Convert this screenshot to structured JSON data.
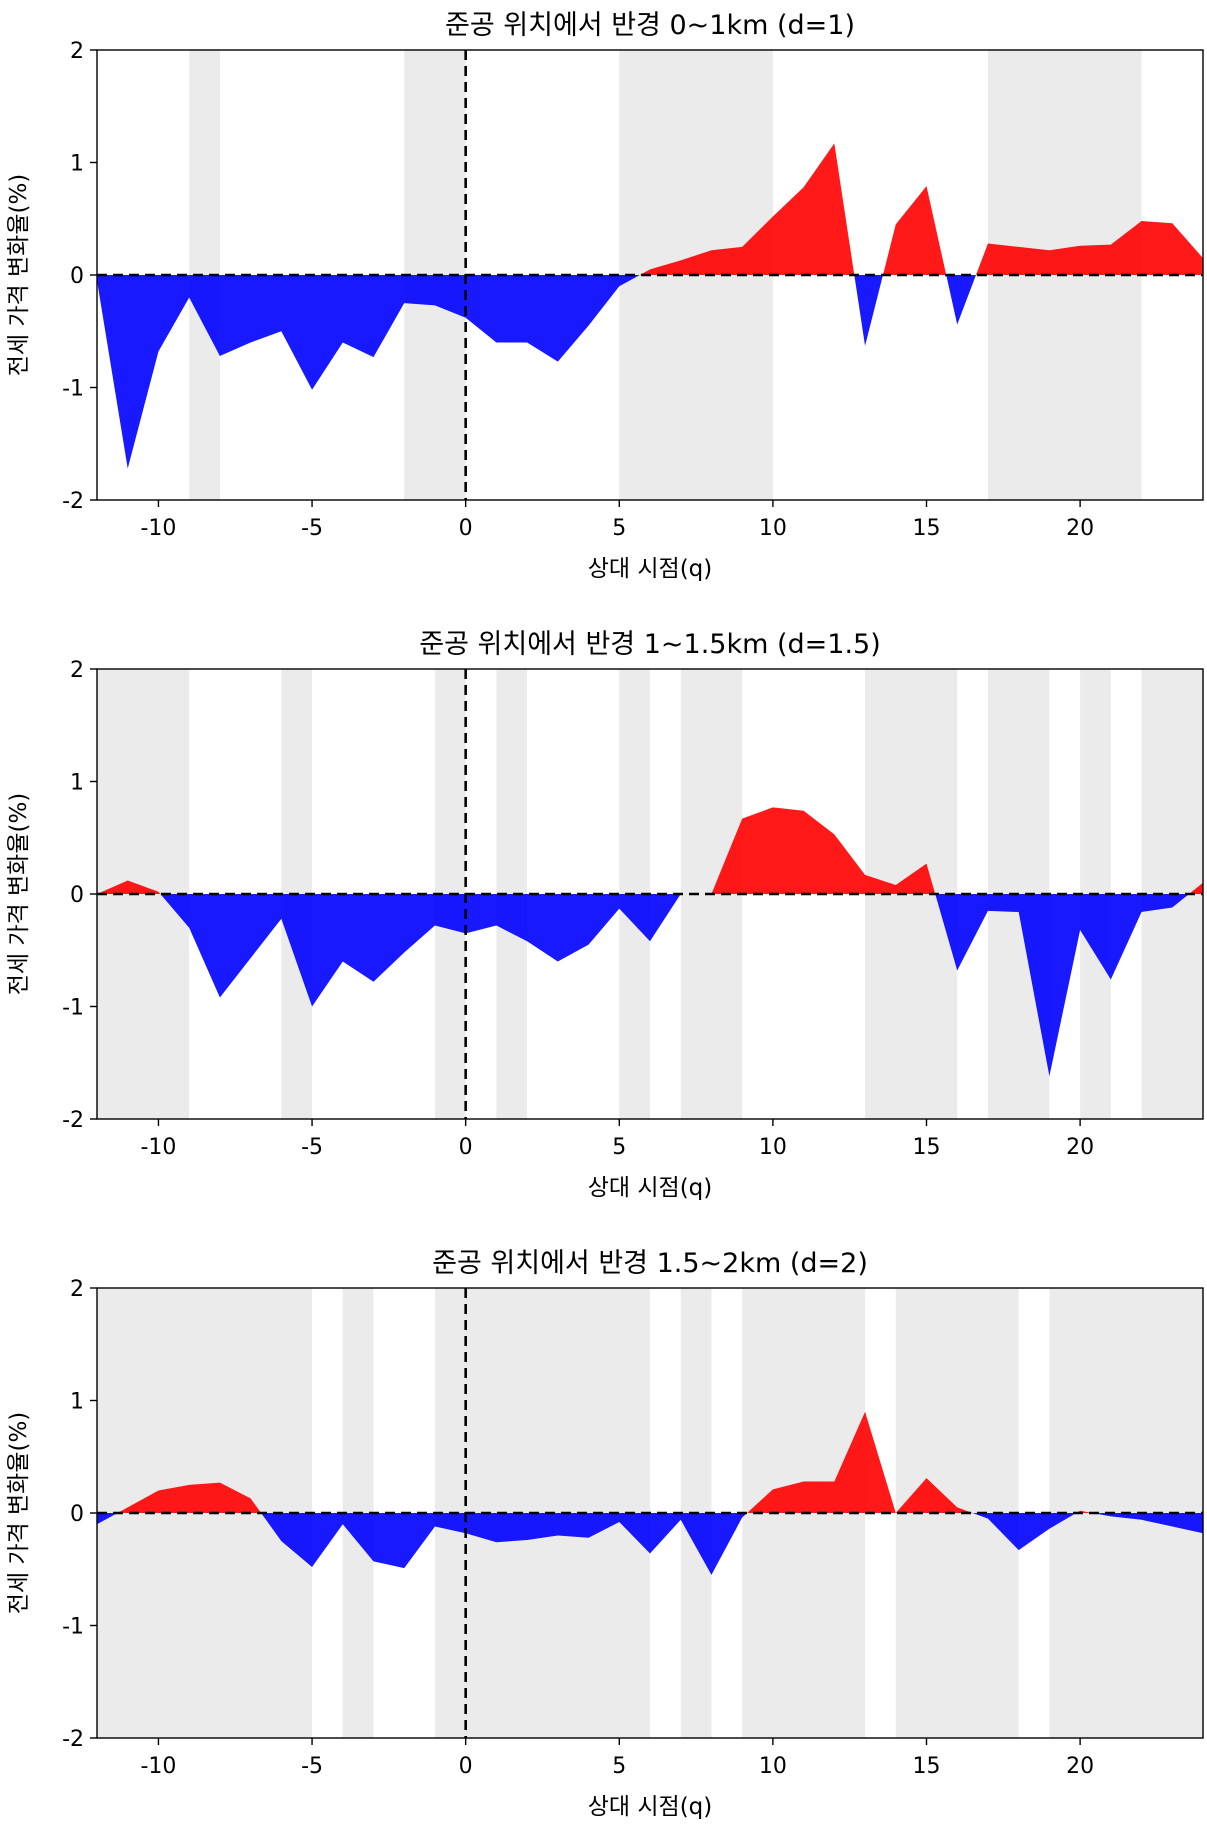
{
  "figure": {
    "xlabel": "상대 시점(q)",
    "ylabel": "전세 가격 변화율(%)",
    "x_ticks": [
      -10,
      -5,
      0,
      5,
      10,
      15,
      20
    ],
    "x_tick_labels": [
      "-10",
      "-5",
      "0",
      "5",
      "10",
      "15",
      "20"
    ],
    "y_ticks": [
      -2,
      -1,
      0,
      1,
      2
    ],
    "y_tick_labels": [
      "-2",
      "-1",
      "0",
      "1",
      "2"
    ],
    "colors": {
      "positive": "#ff0000",
      "negative": "#0000ff",
      "shade": "#ebebeb",
      "reference_line": "#000000"
    }
  },
  "chart_data": [
    {
      "type": "area",
      "title": "준공 위치에서 반경 0~1km (d=1)",
      "xlabel": "상대 시점(q)",
      "ylabel": "전세 가격 변화율(%)",
      "xlim": [
        -12,
        24
      ],
      "ylim": [
        -2,
        2
      ],
      "grid": false,
      "x": [
        -12,
        -11,
        -10,
        -9,
        -8,
        -7,
        -6,
        -5,
        -4,
        -3,
        -2,
        -1,
        0,
        1,
        2,
        3,
        4,
        5,
        6,
        7,
        8,
        9,
        10,
        11,
        12,
        13,
        14,
        15,
        16,
        17,
        18,
        19,
        20,
        21,
        22,
        23,
        24
      ],
      "values": [
        -0.05,
        -1.72,
        -0.68,
        -0.2,
        -0.72,
        -0.6,
        -0.5,
        -1.02,
        -0.6,
        -0.73,
        -0.25,
        -0.27,
        -0.38,
        -0.6,
        -0.6,
        -0.77,
        -0.45,
        -0.1,
        0.05,
        0.13,
        0.22,
        0.25,
        0.52,
        0.78,
        1.17,
        -0.63,
        0.45,
        0.79,
        -0.44,
        0.28,
        0.25,
        0.22,
        0.26,
        0.27,
        0.48,
        0.46,
        0.15
      ],
      "shaded_periods": [
        [
          -9,
          -8
        ],
        [
          -2,
          0
        ],
        [
          5,
          10
        ],
        [
          17,
          22
        ]
      ],
      "reference_lines": {
        "x": 0,
        "y": 0
      }
    },
    {
      "type": "area",
      "title": "준공 위치에서 반경 1~1.5km (d=1.5)",
      "xlabel": "상대 시점(q)",
      "ylabel": "전세 가격 변화율(%)",
      "xlim": [
        -12,
        24
      ],
      "ylim": [
        -2,
        2
      ],
      "grid": false,
      "x": [
        -12,
        -11,
        -10,
        -9,
        -8,
        -7,
        -6,
        -5,
        -4,
        -3,
        -2,
        -1,
        0,
        1,
        2,
        3,
        4,
        5,
        6,
        7,
        8,
        9,
        10,
        11,
        12,
        13,
        14,
        15,
        16,
        17,
        18,
        19,
        20,
        21,
        22,
        23,
        24
      ],
      "values": [
        0.0,
        0.12,
        0.02,
        -0.3,
        -0.92,
        -0.57,
        -0.22,
        -1.0,
        -0.6,
        -0.78,
        -0.52,
        -0.28,
        -0.35,
        -0.28,
        -0.42,
        -0.6,
        -0.45,
        -0.13,
        -0.42,
        0.0,
        0.0,
        0.67,
        0.77,
        0.74,
        0.53,
        0.17,
        0.08,
        0.27,
        -0.68,
        -0.15,
        -0.16,
        -1.62,
        -0.32,
        -0.76,
        -0.16,
        -0.12,
        0.1
      ],
      "shaded_periods": [
        [
          -12,
          -9
        ],
        [
          -6,
          -5
        ],
        [
          -1,
          0
        ],
        [
          1,
          2
        ],
        [
          5,
          6
        ],
        [
          7,
          9
        ],
        [
          13,
          16
        ],
        [
          17,
          19
        ],
        [
          20,
          21
        ],
        [
          22,
          24
        ]
      ],
      "reference_lines": {
        "x": 0,
        "y": 0
      }
    },
    {
      "type": "area",
      "title": "준공 위치에서 반경 1.5~2km (d=2)",
      "xlabel": "상대 시점(q)",
      "ylabel": "전세 가격 변화율(%)",
      "xlim": [
        -12,
        24
      ],
      "ylim": [
        -2,
        2
      ],
      "grid": false,
      "x": [
        -12,
        -11,
        -10,
        -9,
        -8,
        -7,
        -6,
        -5,
        -4,
        -3,
        -2,
        -1,
        0,
        1,
        2,
        3,
        4,
        5,
        6,
        7,
        8,
        9,
        10,
        11,
        12,
        13,
        14,
        15,
        16,
        17,
        18,
        19,
        20,
        21,
        22,
        23,
        24
      ],
      "values": [
        -0.1,
        0.05,
        0.2,
        0.25,
        0.27,
        0.13,
        -0.25,
        -0.48,
        -0.1,
        -0.43,
        -0.49,
        -0.12,
        -0.18,
        -0.26,
        -0.24,
        -0.2,
        -0.22,
        -0.08,
        -0.36,
        -0.06,
        -0.55,
        -0.04,
        0.21,
        0.28,
        0.28,
        0.9,
        0.0,
        0.31,
        0.05,
        -0.05,
        -0.33,
        -0.14,
        0.02,
        -0.03,
        -0.06,
        -0.12,
        -0.18
      ],
      "shaded_periods": [
        [
          -12,
          -5
        ],
        [
          -4,
          -3
        ],
        [
          -1,
          6
        ],
        [
          7,
          8
        ],
        [
          9,
          13
        ],
        [
          14,
          18
        ],
        [
          19,
          24
        ]
      ],
      "reference_lines": {
        "x": 0,
        "y": 0
      }
    }
  ]
}
